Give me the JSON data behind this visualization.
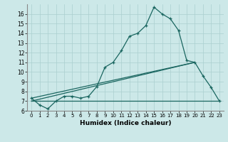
{
  "xlabel": "Humidex (Indice chaleur)",
  "background_color": "#cce8e8",
  "grid_color": "#aacfcf",
  "line_color": "#1a6660",
  "xlim": [
    -0.5,
    23.5
  ],
  "ylim": [
    6.0,
    17.0
  ],
  "yticks": [
    6,
    7,
    8,
    9,
    10,
    11,
    12,
    13,
    14,
    15,
    16
  ],
  "xticks": [
    0,
    1,
    2,
    3,
    4,
    5,
    6,
    7,
    8,
    9,
    10,
    11,
    12,
    13,
    14,
    15,
    16,
    17,
    18,
    19,
    20,
    21,
    22,
    23
  ],
  "line1_x": [
    0,
    1,
    2,
    3,
    4,
    5,
    6,
    7,
    8,
    9,
    10,
    11,
    12,
    13,
    14,
    15,
    16,
    17,
    18,
    19,
    20,
    21,
    22,
    23
  ],
  "line1_y": [
    7.3,
    6.6,
    6.2,
    7.0,
    7.5,
    7.5,
    7.3,
    7.5,
    8.5,
    10.5,
    11.0,
    12.2,
    13.7,
    14.0,
    14.8,
    16.7,
    16.0,
    15.5,
    14.3,
    11.2,
    11.0,
    9.6,
    8.4,
    7.0
  ],
  "line2_x": [
    0,
    20
  ],
  "line2_y": [
    7.3,
    11.0
  ],
  "line3_x": [
    0,
    23
  ],
  "line3_y": [
    7.0,
    7.0
  ],
  "line4_x": [
    0,
    20
  ],
  "line4_y": [
    7.0,
    11.0
  ]
}
